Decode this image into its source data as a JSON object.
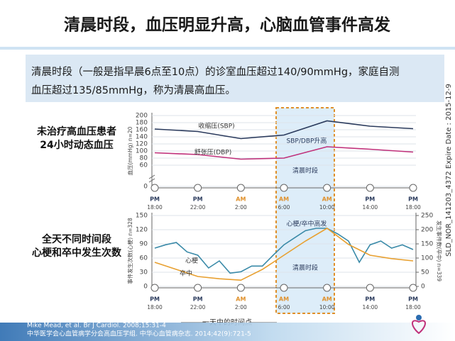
{
  "title": "清晨时段，血压明显升高，心脑血管事件高发",
  "note": [
    "清晨时段（一般是指早晨6点至10点）的诊室血压超过140/90mmHg，家庭自测",
    "血压超过135/85mmHg，称为清晨高血压。"
  ],
  "side_labels": [
    [
      "未治疗高血压患者",
      "24小时动态血压"
    ],
    [
      "全天不同时间段",
      "心梗和卒中发生次数"
    ]
  ],
  "chart_data": [
    {
      "type": "line",
      "ylabel": "血压(mmHg) n=20",
      "xlim": [
        0,
        24
      ],
      "xticks": [
        {
          "value": 0,
          "label": "18:00"
        },
        {
          "value": 4,
          "label": "22:00"
        },
        {
          "value": 8,
          "label": "2:00"
        },
        {
          "value": 12,
          "label": "6:00"
        },
        {
          "value": 16,
          "label": "10:00"
        },
        {
          "value": 20,
          "label": "14:00"
        },
        {
          "value": 24,
          "label": "18:00"
        }
      ],
      "xtick_periods": [
        "PM",
        "PM",
        "AM",
        "AM",
        "AM",
        "PM",
        "PM"
      ],
      "ylim": [
        0,
        200
      ],
      "yticks": [
        0,
        60,
        80,
        100,
        120,
        140,
        160,
        180,
        200
      ],
      "series": [
        {
          "name": "收缩压(SBP)",
          "color": "#2a3a5c",
          "x": [
            0,
            4,
            8,
            12,
            16,
            20,
            24
          ],
          "values": [
            162,
            155,
            135,
            145,
            185,
            170,
            163
          ]
        },
        {
          "name": "舒张压(DBP)",
          "color": "#c0307a",
          "x": [
            0,
            4,
            8,
            12,
            16,
            20,
            24
          ],
          "values": [
            95,
            90,
            77,
            80,
            112,
            105,
            97
          ]
        }
      ],
      "annotations": [
        "SBP/DBP升高",
        "清晨时段"
      ]
    },
    {
      "type": "line",
      "ylabel": "事件发生次数(心梗) n=328",
      "y2label": "发生事件数(卒中) n=339",
      "xlim": [
        0,
        24
      ],
      "xticks": [
        {
          "value": 0,
          "label": "18:00"
        },
        {
          "value": 4,
          "label": "22:00"
        },
        {
          "value": 8,
          "label": "2:00"
        },
        {
          "value": 12,
          "label": "6:00"
        },
        {
          "value": 16,
          "label": "10:00"
        },
        {
          "value": 20,
          "label": "14:00"
        },
        {
          "value": 24,
          "label": "18:00"
        }
      ],
      "xtick_periods": [
        "PM",
        "PM",
        "AM",
        "AM",
        "AM",
        "PM",
        "PM"
      ],
      "ylim": [
        0,
        150
      ],
      "yticks": [
        0,
        30,
        60,
        90,
        120,
        150
      ],
      "y2lim": [
        0,
        250
      ],
      "y2ticks": [
        0,
        50,
        100,
        150,
        200,
        250
      ],
      "series": [
        {
          "name": "心梗",
          "color": "#3a8aa8",
          "x": [
            0,
            1,
            2,
            3,
            4,
            5,
            6,
            7,
            8,
            9,
            10,
            11,
            12,
            13,
            14,
            15,
            16,
            17,
            18,
            19,
            20,
            21,
            22,
            23,
            24
          ],
          "values": [
            81,
            88,
            93,
            73,
            66,
            39,
            54,
            28,
            31,
            43,
            43,
            66,
            88,
            103,
            118,
            123,
            123,
            111,
            96,
            51,
            88,
            96,
            81,
            88,
            78
          ]
        },
        {
          "name": "卒中",
          "color": "#e8a030",
          "axis": "y2",
          "x": [
            0,
            2,
            4,
            6,
            8,
            10,
            12,
            14,
            16,
            18,
            20,
            22,
            24
          ],
          "values": [
            85,
            60,
            35,
            27,
            22,
            60,
            110,
            160,
            205,
            148,
            110,
            98,
            90
          ]
        }
      ],
      "annotations": [
        "心梗/卒中高发",
        "清晨时段"
      ]
    }
  ],
  "x_axis_label": "一天中的时间点",
  "references": [
    "Mike Mead, et al. Br J Cardiol. 2008;15:31-4",
    "中华医学会心血管病学分会高血压学组. 中华心血管病杂志. 2014;42(9):721-5"
  ],
  "code": "SLD_NOR_141203_4372  Expire Date : 2015-12-9"
}
